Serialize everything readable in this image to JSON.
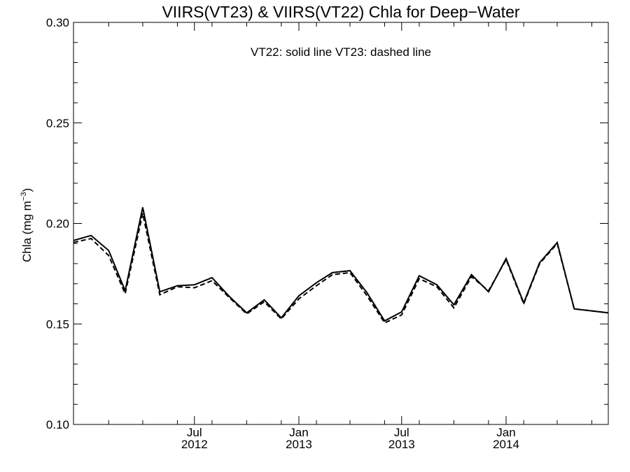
{
  "chart_data": {
    "type": "line",
    "title": "VIIRS(VT23) & VIIRS(VT22)  Chla for Deep−Water",
    "annotation": "VT22: solid line   VT23: dashed line",
    "ylabel_base": "Chla (mg m",
    "ylabel_sup": "−3",
    "ylabel_close": ")",
    "ylim": [
      0.1,
      0.3
    ],
    "yticks": [
      "0.10",
      "0.15",
      "0.20",
      "0.25",
      "0.30"
    ],
    "xlim": [
      "2011-12-01",
      "2014-06-30"
    ],
    "xticks": [
      {
        "month": "Jul",
        "year": "2012",
        "date": "2012-07-01"
      },
      {
        "month": "Jan",
        "year": "2013",
        "date": "2013-01-01"
      },
      {
        "month": "Jul",
        "year": "2013",
        "date": "2013-07-01"
      },
      {
        "month": "Jan",
        "year": "2014",
        "date": "2014-01-01"
      }
    ],
    "x": [
      "2011-12-01",
      "2012-01-01",
      "2012-02-01",
      "2012-03-01",
      "2012-04-01",
      "2012-05-01",
      "2012-06-01",
      "2012-07-01",
      "2012-08-01",
      "2012-09-01",
      "2012-10-01",
      "2012-11-01",
      "2012-12-01",
      "2013-01-01",
      "2013-02-01",
      "2013-03-01",
      "2013-04-01",
      "2013-05-01",
      "2013-06-01",
      "2013-07-01",
      "2013-08-01",
      "2013-09-01",
      "2013-10-01",
      "2013-11-01",
      "2013-12-01",
      "2014-01-01",
      "2014-02-01",
      "2014-03-01",
      "2014-04-01",
      "2014-05-01",
      "2014-06-01",
      "2014-06-30"
    ],
    "series": [
      {
        "name": "VT22",
        "style": "solid",
        "values": [
          0.1915,
          0.194,
          0.1865,
          0.1665,
          0.208,
          0.166,
          0.169,
          0.1695,
          0.173,
          0.1635,
          0.1555,
          0.162,
          0.153,
          0.164,
          0.1705,
          0.1755,
          0.1765,
          0.1655,
          0.1515,
          0.156,
          0.174,
          0.1695,
          0.1595,
          0.1745,
          0.166,
          0.1825,
          0.1605,
          0.1805,
          0.1905,
          0.1575,
          0.1565,
          0.1555
        ]
      },
      {
        "name": "VT23",
        "style": "dashed",
        "values": [
          0.1905,
          0.1925,
          0.184,
          0.165,
          0.205,
          0.1645,
          0.1685,
          0.168,
          0.1715,
          0.163,
          0.155,
          0.161,
          0.1525,
          0.1625,
          0.169,
          0.1745,
          0.1755,
          0.164,
          0.1505,
          0.1545,
          0.1725,
          0.1685,
          0.158,
          0.1735,
          0.1665,
          0.182,
          0.16,
          0.18,
          0.19,
          0.1575,
          0.1565,
          0.1555
        ]
      }
    ],
    "colors": {
      "line": "#000000",
      "background": "#ffffff"
    }
  }
}
